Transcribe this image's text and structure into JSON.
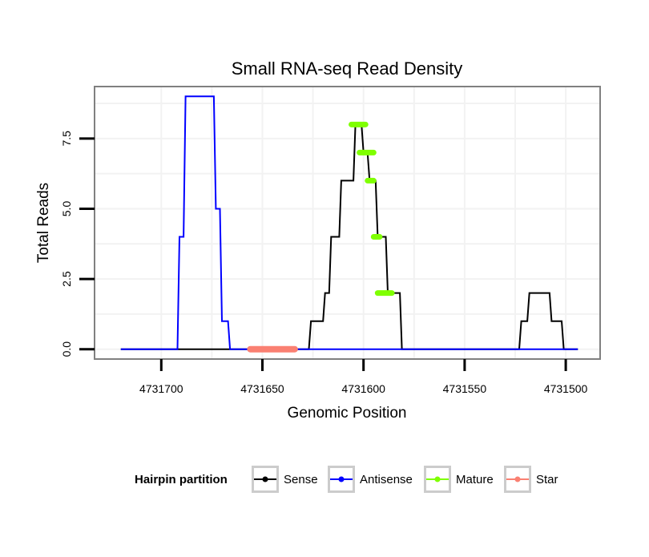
{
  "chart_data": {
    "type": "line",
    "title": "Small RNA-seq Read Density",
    "xlabel": "Genomic Position",
    "ylabel": "Total Reads",
    "x_reversed": true,
    "xlim": [
      4731733,
      4731483
    ],
    "ylim": [
      -0.35,
      9.35
    ],
    "x_ticks": [
      4731700,
      4731650,
      4731600,
      4731550,
      4731500
    ],
    "x_tick_labels": [
      "4731700",
      "4731650",
      "4731600",
      "4731550",
      "4731500"
    ],
    "y_ticks": [
      0,
      2.5,
      5,
      7.5
    ],
    "y_tick_labels": [
      "0.0",
      "2.5",
      "5.0",
      "7.5"
    ],
    "grid": true,
    "legend": {
      "title": "Hairpin partition",
      "position": "bottom",
      "entries": [
        {
          "name": "Sense",
          "color": "#000000"
        },
        {
          "name": "Antisense",
          "color": "#0000ff"
        },
        {
          "name": "Mature",
          "color": "#7fff00"
        },
        {
          "name": "Star",
          "color": "#fa8072"
        }
      ]
    },
    "series": [
      {
        "name": "Sense",
        "color": "#000000",
        "line_width": 2,
        "x": [
          4731720,
          4731627,
          4731626,
          4731620,
          4731619,
          4731617,
          4731616,
          4731612,
          4731611,
          4731605,
          4731604,
          4731601,
          4731600,
          4731598,
          4731597,
          4731594,
          4731593,
          4731589,
          4731588,
          4731582,
          4731581,
          4731523,
          4731522,
          4731519,
          4731518,
          4731508,
          4731507,
          4731502,
          4731501,
          4731494
        ],
        "y": [
          0,
          0,
          1,
          1,
          2,
          2,
          4,
          4,
          6,
          6,
          8,
          8,
          7,
          7,
          6,
          6,
          4,
          4,
          2,
          2,
          0,
          0,
          1,
          1,
          2,
          2,
          1,
          1,
          0,
          0
        ]
      },
      {
        "name": "Antisense",
        "color": "#0000ff",
        "line_width": 2,
        "x": [
          4731720,
          4731692,
          4731691,
          4731689,
          4731688,
          4731674,
          4731673,
          4731671,
          4731670,
          4731667,
          4731666,
          4731494
        ],
        "y": [
          0,
          0,
          4,
          4,
          9,
          9,
          5,
          5,
          1,
          1,
          0,
          0
        ]
      },
      {
        "name": "Mature",
        "color": "#7fff00",
        "line_width": 7,
        "segments": [
          {
            "x": [
              4731606,
              4731599
            ],
            "y": 8
          },
          {
            "x": [
              4731602,
              4731595
            ],
            "y": 7
          },
          {
            "x": [
              4731598,
              4731595
            ],
            "y": 6
          },
          {
            "x": [
              4731595,
              4731592
            ],
            "y": 4
          },
          {
            "x": [
              4731593,
              4731586
            ],
            "y": 2
          }
        ]
      },
      {
        "name": "Star",
        "color": "#fa8072",
        "line_width": 8,
        "segments": [
          {
            "x": [
              4731656,
              4731634
            ],
            "y": 0
          }
        ]
      }
    ]
  }
}
